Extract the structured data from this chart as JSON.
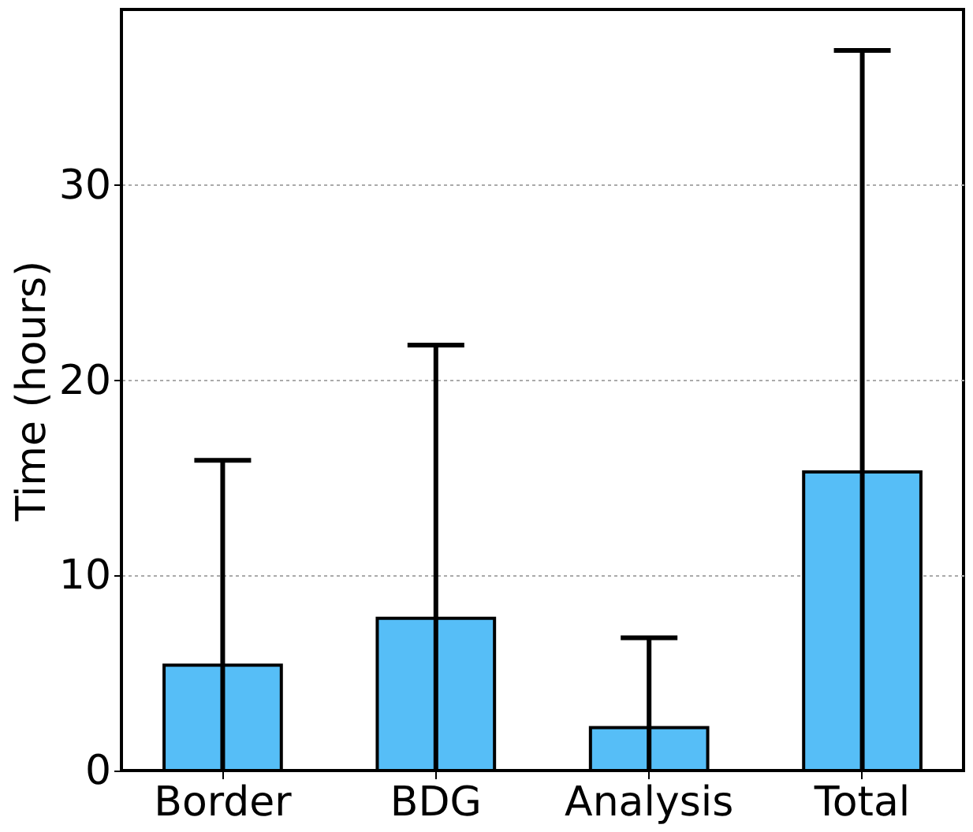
{
  "chart_data": {
    "type": "bar",
    "ylabel": "Time (hours)",
    "categories": [
      "Border",
      "BDG",
      "Analysis",
      "Total"
    ],
    "values": [
      5.4,
      7.8,
      2.2,
      15.3
    ],
    "errors": [
      [
        0,
        15.9
      ],
      [
        0,
        21.8
      ],
      [
        0,
        6.8
      ],
      [
        0,
        36.9
      ]
    ],
    "color": "#56bef7",
    "ylim": [
      0,
      39
    ],
    "yticks": [
      0,
      10,
      20,
      30
    ],
    "grid": "y"
  }
}
